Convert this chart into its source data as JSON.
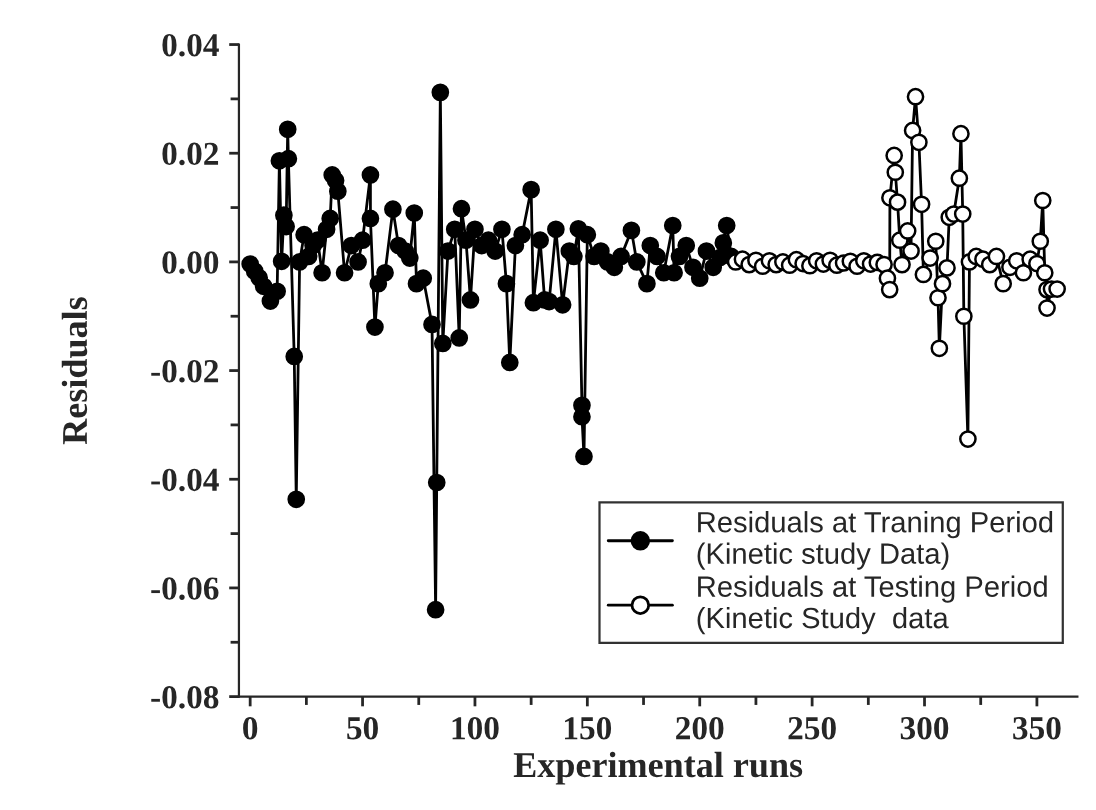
{
  "chart_data": {
    "type": "line",
    "xlabel": "Experimental runs",
    "ylabel": "Residuals",
    "xlim": [
      -5,
      368
    ],
    "ylim": [
      -0.08,
      0.04
    ],
    "xticks": [
      0,
      50,
      100,
      150,
      200,
      250,
      300,
      350
    ],
    "yticks": [
      {
        "value": -0.08,
        "label": "-0.08"
      },
      {
        "value": -0.06,
        "label": "-0.06"
      },
      {
        "value": -0.04,
        "label": "-0.04"
      },
      {
        "value": -0.02,
        "label": "-0.02"
      },
      {
        "value": 0,
        "label": "0.00"
      },
      {
        "value": 0.02,
        "label": "0.02"
      },
      {
        "value": 0.04,
        "label": "0.04"
      }
    ],
    "grid": false,
    "legend": "bottom right",
    "marker": "circle",
    "line_style": "solid",
    "series": [
      {
        "name": "Residuals at Traning Period\n(Kinetic study Data)",
        "color": "#000000",
        "x": [
          0,
          2,
          4,
          6,
          9,
          12,
          13,
          14,
          15,
          16,
          16.7,
          17,
          19.6,
          20.5,
          22,
          24,
          26,
          28,
          30,
          32,
          34,
          35.6,
          36.5,
          38,
          39,
          42,
          45,
          48,
          50,
          53.5,
          53.5,
          55.5,
          57,
          60,
          63.5,
          66,
          69,
          71,
          73,
          74,
          77,
          80.9,
          82.5,
          83,
          84.6,
          85.7,
          88,
          91,
          93,
          94,
          96,
          98,
          100,
          103,
          106,
          109,
          112,
          114,
          115.5,
          118,
          121,
          125,
          126,
          129,
          131,
          133,
          136,
          139,
          142,
          144,
          146,
          147.6,
          147.6,
          148.5,
          150,
          153,
          156,
          159,
          162,
          165,
          169.6,
          172,
          176.5,
          178,
          181,
          184,
          188,
          188.6,
          191,
          194,
          197,
          200,
          203,
          206,
          209,
          210.5,
          212,
          214
        ],
        "values": [
          -0.0004,
          -0.0017,
          -0.0029,
          -0.0045,
          -0.0072,
          -0.0054,
          0.0186,
          0.0001,
          0.0086,
          0.0065,
          0.0244,
          0.019,
          -0.0174,
          -0.0437,
          0.0,
          0.005,
          0.001,
          0.003,
          0.004,
          -0.002,
          0.006,
          0.008,
          0.016,
          0.015,
          0.013,
          -0.002,
          0.003,
          0.0,
          0.004,
          0.016,
          0.008,
          -0.012,
          -0.004,
          -0.002,
          0.0097,
          0.003,
          0.002,
          0.0007,
          0.009,
          -0.004,
          -0.003,
          -0.0115,
          -0.064,
          -0.0406,
          0.0312,
          -0.015,
          0.002,
          0.006,
          -0.014,
          0.0098,
          0.004,
          -0.007,
          0.006,
          0.003,
          0.004,
          0.002,
          0.006,
          -0.004,
          -0.0185,
          0.003,
          0.005,
          0.0133,
          -0.0075,
          0.004,
          -0.007,
          -0.0073,
          0.006,
          -0.0079,
          0.002,
          0.001,
          0.0061,
          -0.0264,
          -0.0285,
          -0.0358,
          0.005,
          0.001,
          0.002,
          0.0,
          -0.001,
          0.001,
          0.0058,
          0.0,
          -0.004,
          0.003,
          0.001,
          -0.002,
          0.0067,
          -0.002,
          0.001,
          0.003,
          -0.001,
          -0.003,
          0.002,
          -0.001,
          0.0008,
          0.0035,
          0.0067,
          0.001
        ]
      },
      {
        "name": "Residuals at Testing Period\n(Kinetic Study  data",
        "color": "#000000",
        "x": [
          216,
          219,
          222,
          225,
          228,
          231,
          234,
          237,
          240,
          243,
          246,
          249,
          252,
          255,
          258,
          261,
          264,
          267,
          270,
          273,
          276,
          279,
          282,
          283.5,
          284.5,
          284.6,
          286.5,
          287,
          288,
          289,
          290,
          292.5,
          294,
          294.7,
          296,
          297.5,
          298.7,
          299.5,
          302.5,
          305,
          306,
          306.6,
          308,
          310,
          311,
          313,
          315.5,
          316.2,
          317,
          317.5,
          319.3,
          320,
          323,
          326,
          329,
          332,
          335,
          338,
          341,
          344,
          347,
          350,
          351.5,
          352.6,
          353.5,
          354.5,
          354.5,
          356.5,
          359
        ],
        "values": [
          0.0,
          0.0005,
          -0.0005,
          0.0003,
          -0.0008,
          0.0002,
          -0.0005,
          0.0,
          -0.0006,
          0.0004,
          -0.0003,
          -0.0007,
          0.0002,
          -0.0004,
          0.0003,
          -0.0006,
          -0.0002,
          0.0001,
          -0.0008,
          0.0002,
          -0.0004,
          -0.0001,
          -0.0005,
          -0.003,
          -0.0051,
          0.0118,
          0.0196,
          0.0165,
          0.011,
          0.004,
          -0.0005,
          0.0057,
          0.002,
          0.0242,
          0.0304,
          0.022,
          0.0106,
          -0.0023,
          0.0007,
          0.0038,
          -0.0066,
          -0.0159,
          -0.004,
          -0.0011,
          0.0082,
          0.0088,
          0.0154,
          0.0236,
          0.0088,
          -0.01,
          -0.0326,
          0.0,
          0.001,
          0.0005,
          -0.0005,
          0.001,
          -0.004,
          -0.001,
          0.0002,
          -0.002,
          0.0005,
          -0.0003,
          0.0038,
          0.0113,
          -0.002,
          -0.0051,
          -0.0085,
          -0.005,
          -0.005
        ]
      }
    ]
  }
}
